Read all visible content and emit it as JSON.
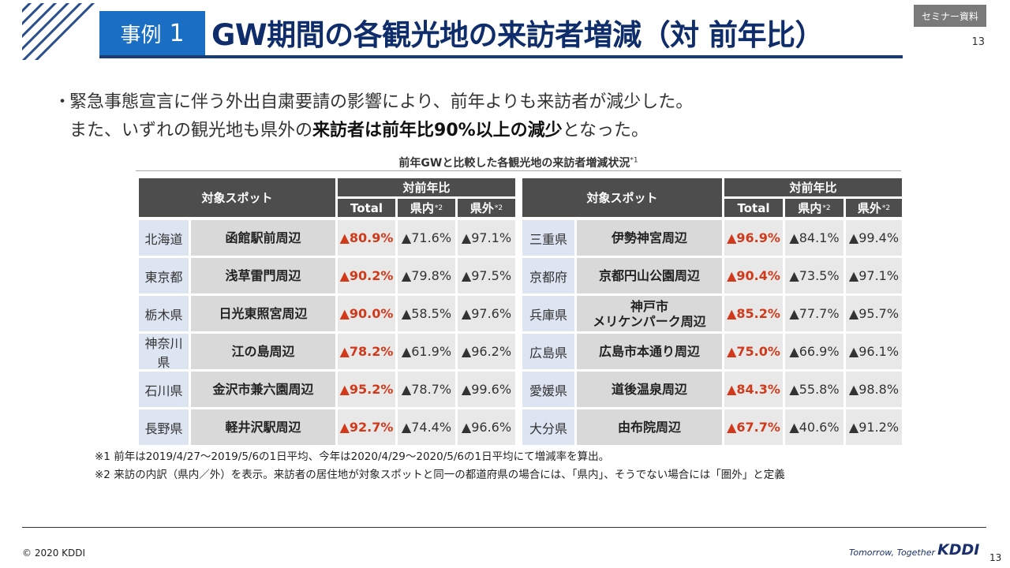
{
  "header": {
    "case_label": "事例",
    "case_number": "1",
    "title": "GW期間の各観光地の来訪者増減（対 前年比）",
    "seminar_tag": "セミナー資料",
    "page_number_top": "13"
  },
  "bullet": {
    "line1": "緊急事態宣言に伴う外出自粛要請の影響により、前年よりも来訪者が減少した。",
    "line2_prefix": "また、いずれの観光地も県外の",
    "line2_bold": "来訪者は前年比90%以上の減少",
    "line2_suffix": "となった。"
  },
  "table": {
    "title": "前年GWと比較した各観光地の来訪者増減状況",
    "title_note": "*1",
    "header_spot": "対象スポット",
    "header_yoy": "対前年比",
    "col_total": "Total",
    "col_in": "県内",
    "col_out": "県外",
    "col_note": "*2",
    "left_rows": [
      {
        "pref": "北海道",
        "spot": "函館駅前周辺",
        "total": "▲80.9%",
        "in": "▲71.6%",
        "out": "▲97.1%"
      },
      {
        "pref": "東京都",
        "spot": "浅草雷門周辺",
        "total": "▲90.2%",
        "in": "▲79.8%",
        "out": "▲97.5%"
      },
      {
        "pref": "栃木県",
        "spot": "日光東照宮周辺",
        "total": "▲90.0%",
        "in": "▲58.5%",
        "out": "▲97.6%"
      },
      {
        "pref": "神奈川県",
        "spot": "江の島周辺",
        "total": "▲78.2%",
        "in": "▲61.9%",
        "out": "▲96.2%"
      },
      {
        "pref": "石川県",
        "spot": "金沢市兼六園周辺",
        "total": "▲95.2%",
        "in": "▲78.7%",
        "out": "▲99.6%"
      },
      {
        "pref": "長野県",
        "spot": "軽井沢駅周辺",
        "total": "▲92.7%",
        "in": "▲74.4%",
        "out": "▲96.6%"
      }
    ],
    "right_rows": [
      {
        "pref": "三重県",
        "spot": "伊勢神宮周辺",
        "total": "▲96.9%",
        "in": "▲84.1%",
        "out": "▲99.4%"
      },
      {
        "pref": "京都府",
        "spot": "京都円山公園周辺",
        "total": "▲90.4%",
        "in": "▲73.5%",
        "out": "▲97.1%"
      },
      {
        "pref": "兵庫県",
        "spot": "神戸市",
        "spot2": "メリケンパーク周辺",
        "total": "▲85.2%",
        "in": "▲77.7%",
        "out": "▲95.7%"
      },
      {
        "pref": "広島県",
        "spot": "広島市本通り周辺",
        "total": "▲75.0%",
        "in": "▲66.9%",
        "out": "▲96.1%"
      },
      {
        "pref": "愛媛県",
        "spot": "道後温泉周辺",
        "total": "▲84.3%",
        "in": "▲55.8%",
        "out": "▲98.8%"
      },
      {
        "pref": "大分県",
        "spot": "由布院周辺",
        "total": "▲67.7%",
        "in": "▲40.6%",
        "out": "▲91.2%"
      }
    ]
  },
  "notes": {
    "note1": "※1 前年は2019/4/27～2019/5/6の1日平均、今年は2020/4/29～2020/5/6の1日平均にて増減率を算出。",
    "note2": "※2 来訪の内訳（県内／外）を表示。来訪者の居住地が対象スポットと同一の都道府県の場合には、「県内」、そうでない場合には「圏外」と定義"
  },
  "footer": {
    "copyright": "© 2020 KDDI",
    "tagline": "Tomorrow, Together",
    "logo_text": "KDDI",
    "page_number": "13"
  },
  "colors": {
    "accent_blue": "#1a6fc4",
    "title_navy": "#0f2d6a",
    "decrease_red": "#d03a1a",
    "header_gray": "#4d4d4d"
  }
}
